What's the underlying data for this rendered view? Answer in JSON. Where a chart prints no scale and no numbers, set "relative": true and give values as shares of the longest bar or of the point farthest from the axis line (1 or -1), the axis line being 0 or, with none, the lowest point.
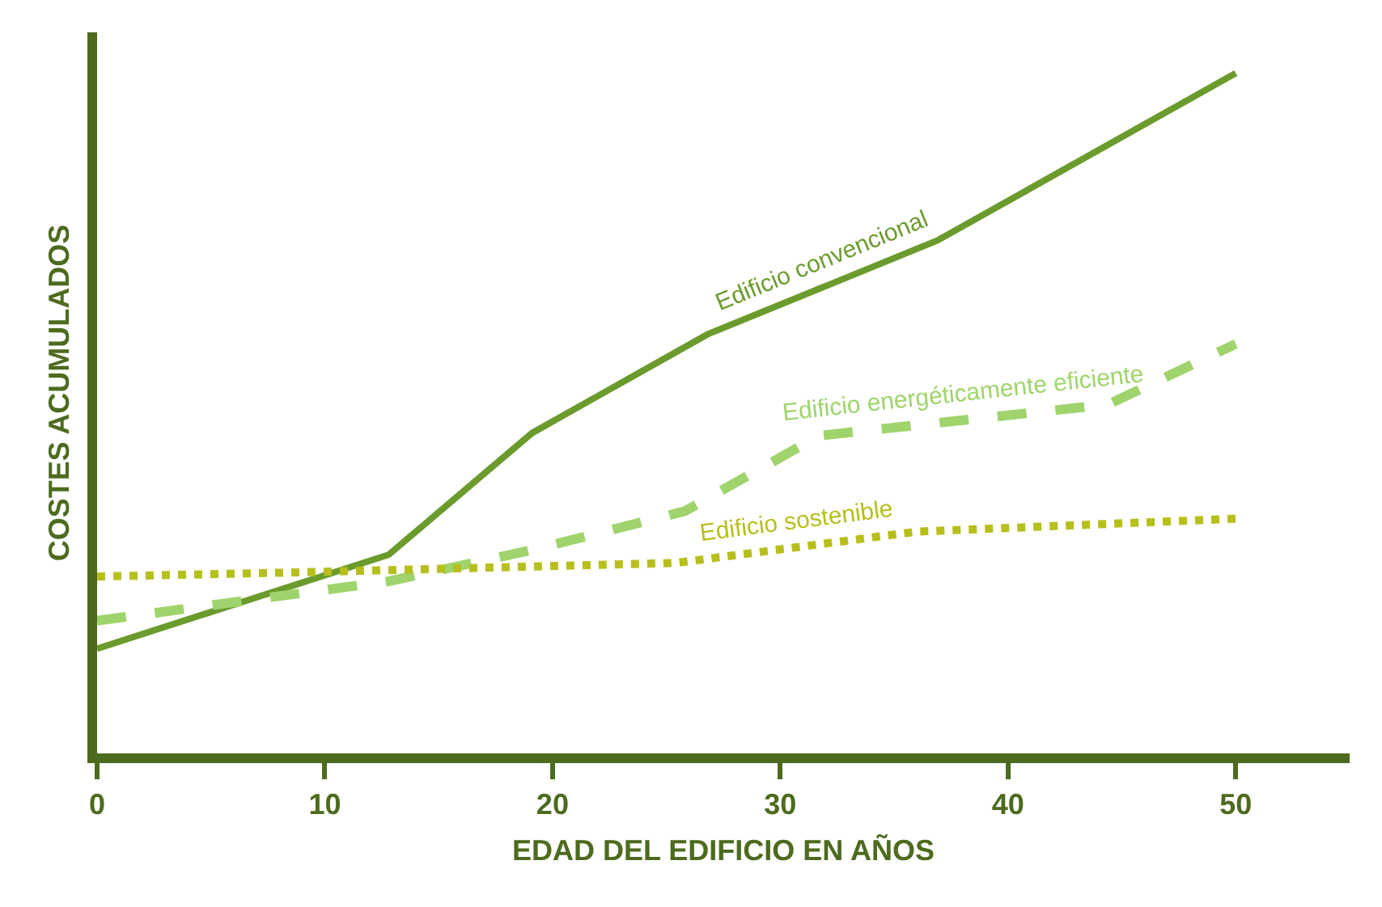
{
  "chart_data": {
    "type": "line",
    "relative": true,
    "xlabel": "EDAD DEL EDIFICIO EN AÑOS",
    "ylabel": "COSTES ACUMULADOS",
    "xlim": [
      0,
      55
    ],
    "xticks": [
      0,
      10,
      20,
      30,
      40,
      50
    ],
    "legend": false,
    "marker": "none",
    "series": [
      {
        "name": "Edificio convencional",
        "color": "#6b9b2c",
        "line_style": "solid",
        "x": [
          0,
          12.8,
          19.1,
          26.8,
          36.9,
          50
        ],
        "values": [
          0.154,
          0.292,
          0.471,
          0.616,
          0.754,
          1.0
        ]
      },
      {
        "name": "Edificio energéticamente eficiente",
        "color": "#9fd46c",
        "line_style": "dashed",
        "x": [
          0,
          12.8,
          19.1,
          25.8,
          31.7,
          44.4,
          50
        ],
        "values": [
          0.195,
          0.253,
          0.299,
          0.356,
          0.467,
          0.513,
          0.602
        ]
      },
      {
        "name": "Edificio sostenible",
        "color": "#b7bf1c",
        "line_style": "dotted",
        "x": [
          0,
          10,
          25.4,
          36,
          50
        ],
        "values": [
          0.26,
          0.267,
          0.28,
          0.326,
          0.345
        ]
      }
    ]
  }
}
